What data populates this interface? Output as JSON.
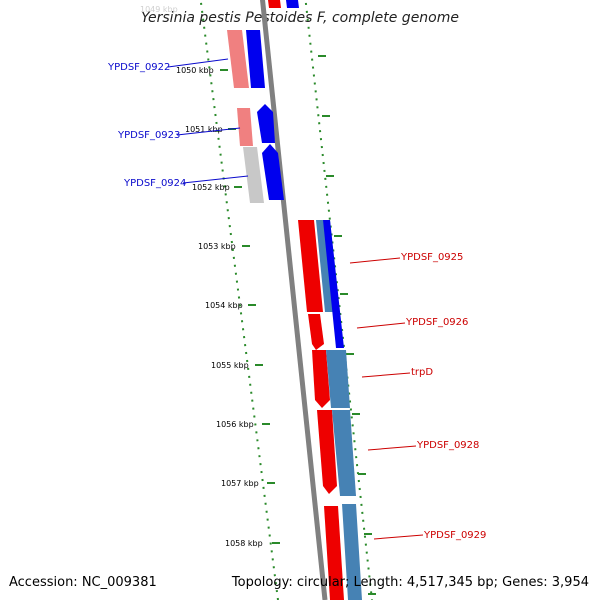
{
  "title": "Yersinia pestis Pestoides F, complete genome",
  "accession_text": "Accession: NC_009381",
  "summary_text": "Topology: circular; Length: 4,517,345 bp; Genes: 3,954",
  "faded_top_label": "1049 kbp",
  "kbp_ticks": [
    "1050 kbp",
    "1051 kbp",
    "1052 kbp",
    "1053 kbp",
    "1054 kbp",
    "1055 kbp",
    "1056 kbp",
    "1057 kbp",
    "1058 kbp"
  ],
  "gene_labels_left": [
    "YPDSF_0922",
    "YPDSF_0923",
    "YPDSF_0924"
  ],
  "gene_labels_right": [
    "YPDSF_0925",
    "YPDSF_0926",
    "trpD",
    "YPDSF_0928",
    "YPDSF_0929"
  ],
  "colors": {
    "reverse_strand": "#0000ee",
    "forward_strand": "#ee0000",
    "cds_light_red": "#f08080",
    "cds_steelblue": "#4682b4",
    "backbone": "#808080",
    "ticks": "#2a8a2a"
  }
}
